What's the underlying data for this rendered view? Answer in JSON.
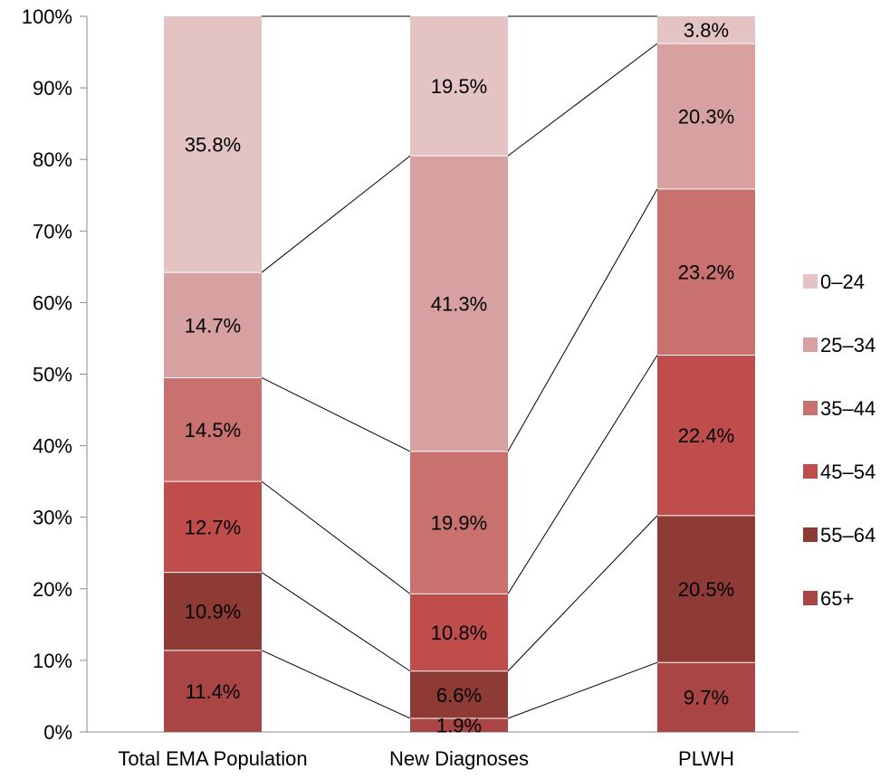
{
  "chart_data": {
    "type": "bar",
    "stacked": true,
    "percent": true,
    "categories": [
      "Total EMA Population",
      "New Diagnoses",
      "PLWH"
    ],
    "series": [
      {
        "name": "65+",
        "color": "#A94545",
        "values": [
          11.4,
          1.9,
          9.7
        ],
        "labels": [
          "11.4%",
          "1.9%",
          "9.7%"
        ]
      },
      {
        "name": "55–64",
        "color": "#8E3B36",
        "values": [
          10.9,
          6.6,
          20.5
        ],
        "labels": [
          "10.9%",
          "6.6%",
          "20.5%"
        ]
      },
      {
        "name": "45–54",
        "color": "#BE4D4B",
        "values": [
          12.7,
          10.8,
          22.4
        ],
        "labels": [
          "12.7%",
          "10.8%",
          "22.4%"
        ]
      },
      {
        "name": "35–44",
        "color": "#C9716F",
        "values": [
          14.5,
          19.9,
          23.2
        ],
        "labels": [
          "14.5%",
          "19.9%",
          "23.2%"
        ]
      },
      {
        "name": "25–34",
        "color": "#D7A1A1",
        "values": [
          14.7,
          41.3,
          20.3
        ],
        "labels": [
          "14.7%",
          "41.3%",
          "20.3%"
        ]
      },
      {
        "name": "0–24",
        "color": "#E3C3C3",
        "values": [
          35.8,
          19.5,
          3.8
        ],
        "labels": [
          "35.8%",
          "19.5%",
          "3.8%"
        ]
      }
    ],
    "yticks": [
      "0%",
      "10%",
      "20%",
      "30%",
      "40%",
      "50%",
      "60%",
      "70%",
      "80%",
      "90%",
      "100%"
    ],
    "ylim": [
      0,
      100
    ],
    "grid": false,
    "series_lines": true,
    "legend": {
      "position": "right",
      "order": [
        "0–24",
        "25–34",
        "35–44",
        "45–54",
        "55–64",
        "65+"
      ]
    }
  }
}
